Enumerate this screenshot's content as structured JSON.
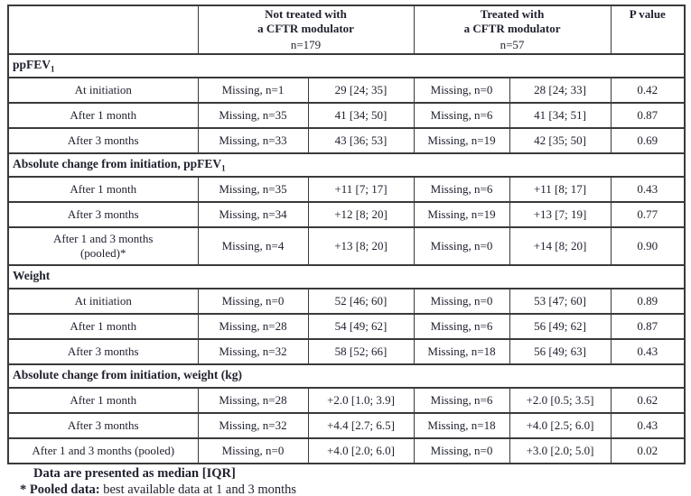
{
  "colors": {
    "text": "#20222f",
    "border": "#3a3a3a",
    "background": "#ffffff"
  },
  "table": {
    "header": {
      "corner": "",
      "group1": {
        "line1": "Not treated with",
        "line2": "a CFTR modulator",
        "n": "n=179"
      },
      "group2": {
        "line1": "Treated with",
        "line2": "a CFTR modulator",
        "n": "n=57"
      },
      "p_value": "P value"
    },
    "sections": [
      {
        "title": "ppFEV",
        "subscript": "1",
        "rows": [
          {
            "label": "At initiation",
            "cells": [
              "Missing, n=1",
              "29 [24; 35]",
              "Missing, n=0",
              "28 [24; 33]",
              "0.42"
            ]
          },
          {
            "label": "After 1 month",
            "cells": [
              "Missing, n=35",
              "41 [34; 50]",
              "Missing, n=6",
              "41 [34; 51]",
              "0.87"
            ]
          },
          {
            "label": "After 3 months",
            "cells": [
              "Missing, n=33",
              "43 [36; 53]",
              "Missing, n=19",
              "42 [35; 50]",
              "0.69"
            ]
          }
        ]
      },
      {
        "title": "Absolute change from initiation, ppFEV",
        "subscript": "1",
        "rows": [
          {
            "label": "After 1 month",
            "cells": [
              "Missing, n=35",
              "+11 [7; 17]",
              "Missing, n=6",
              "+11 [8; 17]",
              "0.43"
            ]
          },
          {
            "label": "After 3 months",
            "cells": [
              "Missing, n=34",
              "+12 [8; 20]",
              "Missing, n=19",
              "+13 [7; 19]",
              "0.77"
            ]
          },
          {
            "label": "After 1 and 3 months\n(pooled)*",
            "tall": true,
            "cells": [
              "Missing, n=4",
              "+13 [8; 20]",
              "Missing, n=0",
              "+14 [8; 20]",
              "0.90"
            ]
          }
        ]
      },
      {
        "title": "Weight",
        "subscript": "",
        "rows": [
          {
            "label": "At initiation",
            "cells": [
              "Missing, n=0",
              "52 [46; 60]",
              "Missing, n=0",
              "53 [47; 60]",
              "0.89"
            ]
          },
          {
            "label": "After 1 month",
            "cells": [
              "Missing, n=28",
              "54 [49; 62]",
              "Missing, n=6",
              "56 [49; 62]",
              "0.87"
            ]
          },
          {
            "label": "After 3 months",
            "cells": [
              "Missing, n=32",
              "58 [52; 66]",
              "Missing, n=18",
              "56 [49; 63]",
              "0.43"
            ]
          }
        ]
      },
      {
        "title": "Absolute change from initiation, weight (kg)",
        "subscript": "",
        "rows": [
          {
            "label": "After 1 month",
            "cells": [
              "Missing, n=28",
              "+2.0 [1.0; 3.9]",
              "Missing, n=6",
              "+2.0 [0.5; 3.5]",
              "0.62"
            ]
          },
          {
            "label": "After 3 months",
            "cells": [
              "Missing, n=32",
              "+4.4 [2.7; 6.5]",
              "Missing, n=18",
              "+4.0 [2.5; 6.0]",
              "0.43"
            ]
          },
          {
            "label": "After 1 and 3 months (pooled)",
            "cells": [
              "Missing, n=0",
              "+4.0 [2.0; 6.0]",
              "Missing, n=0",
              "+3.0 [2.0; 5.0]",
              "0.02"
            ]
          }
        ]
      }
    ]
  },
  "footnotes": {
    "line1": "Data are presented as median [IQR]",
    "line2_bold": "* Pooled data:",
    "line2_rest": " best available data at 1 and 3 months"
  }
}
